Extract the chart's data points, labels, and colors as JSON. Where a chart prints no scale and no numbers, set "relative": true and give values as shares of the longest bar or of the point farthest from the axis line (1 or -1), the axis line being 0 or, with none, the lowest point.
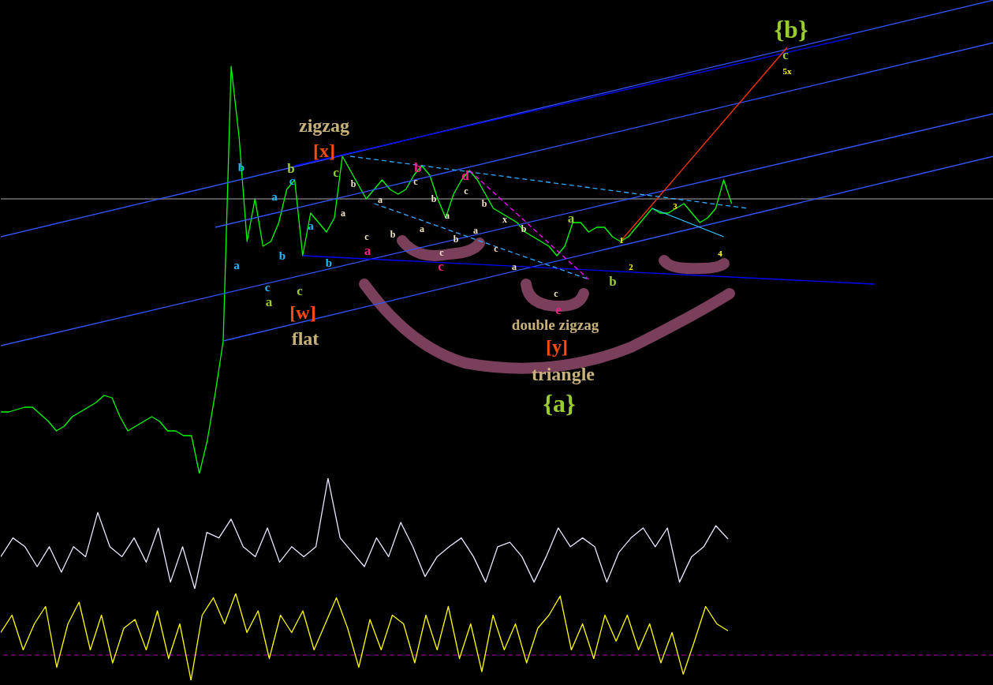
{
  "chart_data": [
    {
      "type": "line",
      "relative": true,
      "categories": [
        null,
        null,
        null,
        null,
        null,
        null,
        null,
        null,
        null,
        null,
        null,
        null,
        null,
        null,
        null,
        null,
        null,
        null,
        null,
        null,
        null,
        null,
        null,
        null,
        null,
        null,
        null,
        null,
        null,
        null,
        null,
        null,
        null,
        null,
        null,
        null,
        null,
        null,
        null,
        null,
        null,
        null,
        null,
        null,
        null,
        null,
        null,
        null,
        null,
        null,
        null,
        null,
        null,
        null,
        null,
        null,
        null,
        null,
        null,
        null,
        null,
        null,
        null,
        null,
        null,
        null,
        null,
        null,
        null,
        null,
        null,
        null,
        null,
        null,
        null,
        null,
        null,
        null,
        null,
        null,
        null,
        null,
        null,
        null,
        null,
        null,
        null,
        null,
        null,
        null,
        null,
        null,
        null,
        null,
        null,
        null,
        null,
        null,
        null,
        null,
        null,
        null,
        null,
        null,
        null,
        null,
        null,
        null,
        null,
        null,
        null,
        null,
        null,
        null,
        null,
        null,
        null,
        null,
        null,
        null,
        null,
        null,
        null,
        null,
        null,
        null
      ],
      "series": [
        {
          "color": "#00ff00",
          "values": [
            0.13,
            0.13,
            0.135,
            0.14,
            0.14,
            0.125,
            0.11,
            0.09,
            0.1,
            0.12,
            0.13,
            0.14,
            0.15,
            0.165,
            0.16,
            0.12,
            0.09,
            0.1,
            0.11,
            0.12,
            0.11,
            0.09,
            0.09,
            0.08,
            0.08,
            0,
            0.07,
            0.17,
            0.28,
            0.86,
            0.71,
            0.49,
            0.58,
            0.48,
            0.49,
            0.53,
            0.6,
            0.62,
            0.46,
            0.55,
            0.53,
            0.51,
            0.54,
            0.67,
            0.64,
            0.61,
            0.58,
            0.6,
            0.62,
            0.6,
            0.59,
            0.6,
            0.63,
            0.65,
            0.63,
            0.58,
            0.54,
            0.59,
            0.62,
            0.64,
            0.62,
            0.59,
            0.56,
            0.55,
            0.54,
            0.53,
            0.51,
            0.5,
            0.49,
            0.48,
            0.46,
            0.48,
            0.53,
            0.53,
            0.51,
            0.52,
            0.52,
            0.5,
            0.49,
            0.5,
            0.52,
            0.54,
            0.56,
            0.55,
            0.55,
            0.56,
            0.57,
            0.55,
            0.53,
            0.54,
            0.56,
            0.62,
            0.57,
            null,
            null,
            null,
            null,
            null,
            null,
            null,
            null,
            null,
            null,
            null,
            null,
            null,
            null,
            null,
            null,
            null,
            null,
            null,
            null,
            null,
            null,
            null,
            null,
            null,
            null,
            null,
            null,
            null,
            null,
            null,
            null,
            null
          ]
        },
        {
          "color": "#3355ff",
          "values": [
            0.5,
            null,
            null,
            null,
            null,
            null,
            null,
            null,
            null,
            null,
            null,
            null,
            null,
            null,
            null,
            null,
            null,
            null,
            null,
            null,
            null,
            null,
            null,
            null,
            null,
            null,
            null,
            null,
            null,
            null,
            null,
            null,
            null,
            null,
            null,
            null,
            null,
            null,
            null,
            null,
            null,
            null,
            null,
            null,
            null,
            null,
            null,
            null,
            null,
            null,
            null,
            null,
            null,
            null,
            null,
            null,
            null,
            null,
            null,
            null,
            null,
            null,
            null,
            null,
            null,
            null,
            null,
            null,
            null,
            null,
            null,
            null,
            null,
            null,
            null,
            null,
            null,
            null,
            null,
            null,
            null,
            null,
            null,
            null,
            null,
            null,
            null,
            null,
            null,
            null,
            null,
            null,
            null,
            null,
            null,
            null,
            null,
            null,
            null,
            null,
            null,
            null,
            null,
            null,
            null,
            null,
            null,
            null,
            null,
            null,
            null,
            null,
            null,
            null,
            null,
            null,
            null,
            null,
            null,
            null,
            null,
            null,
            null,
            null,
            null,
            1.0
          ]
        },
        {
          "color": "#0000ff",
          "values": [
            null,
            null,
            null,
            null,
            null,
            null,
            null,
            null,
            null,
            null,
            null,
            null,
            null,
            null,
            null,
            null,
            null,
            null,
            null,
            null,
            null,
            null,
            null,
            null,
            null,
            null,
            null,
            null,
            null,
            null,
            null,
            null,
            null,
            null,
            null,
            null,
            null,
            0.65,
            null,
            null,
            null,
            null,
            null,
            null,
            null,
            null,
            null,
            null,
            null,
            null,
            null,
            null,
            null,
            null,
            null,
            null,
            null,
            null,
            null,
            null,
            null,
            null,
            null,
            null,
            null,
            null,
            null,
            null,
            null,
            null,
            null,
            null,
            null,
            null,
            null,
            null,
            null,
            null,
            null,
            null,
            null,
            null,
            null,
            null,
            null,
            null,
            null,
            null,
            null,
            null,
            null,
            null,
            null,
            null,
            null,
            null,
            null,
            null,
            null,
            null,
            null,
            null,
            null,
            null,
            null,
            null,
            null,
            0.92,
            null,
            null,
            null,
            null,
            null,
            null,
            null,
            null,
            null,
            null,
            null,
            null,
            null,
            null,
            null,
            null,
            null,
            null
          ]
        },
        {
          "color": "#3355ff",
          "values": [
            null,
            null,
            null,
            null,
            null,
            null,
            null,
            null,
            null,
            null,
            null,
            null,
            null,
            null,
            null,
            null,
            null,
            null,
            null,
            null,
            null,
            null,
            null,
            null,
            null,
            null,
            null,
            0.52,
            null,
            null,
            null,
            null,
            null,
            null,
            null,
            null,
            null,
            null,
            null,
            null,
            null,
            null,
            null,
            null,
            null,
            null,
            null,
            null,
            null,
            null,
            null,
            null,
            null,
            null,
            null,
            null,
            null,
            null,
            null,
            null,
            null,
            null,
            null,
            null,
            null,
            null,
            null,
            null,
            null,
            null,
            null,
            null,
            null,
            null,
            null,
            null,
            null,
            null,
            null,
            null,
            null,
            null,
            null,
            null,
            null,
            null,
            null,
            null,
            null,
            null,
            null,
            null,
            null,
            null,
            null,
            null,
            null,
            null,
            null,
            null,
            null,
            null,
            null,
            null,
            null,
            null,
            null,
            null,
            null,
            null,
            null,
            null,
            null,
            null,
            null,
            null,
            null,
            null,
            null,
            null,
            null,
            null,
            null,
            null,
            null,
            0.91
          ]
        },
        {
          "color": "#3355ff",
          "values": [
            0.27,
            null,
            null,
            null,
            null,
            null,
            null,
            null,
            null,
            null,
            null,
            null,
            null,
            null,
            null,
            null,
            null,
            null,
            null,
            null,
            null,
            null,
            null,
            null,
            null,
            null,
            null,
            null,
            null,
            null,
            null,
            null,
            null,
            null,
            null,
            null,
            null,
            null,
            null,
            null,
            null,
            null,
            null,
            null,
            null,
            null,
            null,
            null,
            null,
            null,
            null,
            null,
            null,
            null,
            null,
            null,
            null,
            null,
            null,
            null,
            null,
            null,
            null,
            null,
            null,
            null,
            null,
            null,
            null,
            null,
            null,
            null,
            null,
            null,
            null,
            null,
            null,
            null,
            null,
            null,
            null,
            null,
            null,
            null,
            null,
            null,
            null,
            null,
            null,
            null,
            null,
            null,
            null,
            null,
            null,
            null,
            null,
            null,
            null,
            null,
            null,
            null,
            null,
            null,
            null,
            null,
            null,
            null,
            null,
            null,
            null,
            null,
            null,
            null,
            null,
            null,
            null,
            null,
            null,
            null,
            null,
            null,
            null,
            null,
            null,
            0.76
          ]
        },
        {
          "color": "#3355ff",
          "values": [
            null,
            null,
            null,
            null,
            null,
            null,
            null,
            null,
            null,
            null,
            null,
            null,
            null,
            null,
            null,
            null,
            null,
            null,
            null,
            null,
            null,
            null,
            null,
            null,
            null,
            null,
            null,
            null,
            0.28,
            null,
            null,
            null,
            null,
            null,
            null,
            null,
            null,
            null,
            null,
            null,
            null,
            null,
            null,
            null,
            null,
            null,
            null,
            null,
            null,
            null,
            null,
            null,
            null,
            null,
            null,
            null,
            null,
            null,
            null,
            null,
            null,
            null,
            null,
            null,
            null,
            null,
            null,
            null,
            null,
            null,
            null,
            null,
            null,
            null,
            null,
            null,
            null,
            null,
            null,
            null,
            null,
            null,
            null,
            null,
            null,
            null,
            null,
            null,
            null,
            null,
            null,
            null,
            null,
            null,
            null,
            null,
            null,
            null,
            null,
            null,
            null,
            null,
            null,
            null,
            null,
            null,
            null,
            null,
            null,
            null,
            null,
            null,
            null,
            null,
            null,
            null,
            null,
            null,
            null,
            null,
            null,
            null,
            null,
            null,
            null,
            0.67
          ]
        },
        {
          "color": "#0000ff",
          "values": [
            null,
            null,
            null,
            null,
            null,
            null,
            null,
            null,
            null,
            null,
            null,
            null,
            null,
            null,
            null,
            null,
            null,
            null,
            null,
            null,
            null,
            null,
            null,
            null,
            null,
            null,
            null,
            null,
            null,
            null,
            null,
            null,
            null,
            null,
            null,
            null,
            null,
            null,
            0.46,
            null,
            null,
            null,
            null,
            null,
            null,
            null,
            null,
            null,
            null,
            null,
            null,
            null,
            null,
            null,
            null,
            null,
            null,
            null,
            null,
            null,
            null,
            null,
            null,
            null,
            null,
            null,
            null,
            null,
            null,
            null,
            null,
            null,
            null,
            null,
            null,
            null,
            null,
            null,
            null,
            null,
            null,
            null,
            null,
            null,
            null,
            null,
            null,
            null,
            null,
            null,
            null,
            null,
            null,
            null,
            null,
            null,
            null,
            null,
            null,
            null,
            null,
            null,
            null,
            null,
            null,
            null,
            null,
            null,
            null,
            null,
            0.4,
            null,
            null,
            null,
            null,
            null,
            null,
            null,
            null,
            null,
            null,
            null,
            null,
            null,
            null,
            null
          ]
        },
        {
          "color": "#ff3300",
          "values": [
            null,
            null,
            null,
            null,
            null,
            null,
            null,
            null,
            null,
            null,
            null,
            null,
            null,
            null,
            null,
            null,
            null,
            null,
            null,
            null,
            null,
            null,
            null,
            null,
            null,
            null,
            null,
            null,
            null,
            null,
            null,
            null,
            null,
            null,
            null,
            null,
            null,
            null,
            null,
            null,
            null,
            null,
            null,
            null,
            null,
            null,
            null,
            null,
            null,
            null,
            null,
            null,
            null,
            null,
            null,
            null,
            null,
            null,
            null,
            null,
            null,
            null,
            null,
            null,
            null,
            null,
            null,
            null,
            null,
            null,
            null,
            null,
            null,
            null,
            null,
            null,
            null,
            null,
            0.49,
            null,
            null,
            null,
            null,
            null,
            null,
            null,
            null,
            null,
            null,
            null,
            null,
            null,
            null,
            null,
            null,
            null,
            null,
            null,
            null,
            0.9,
            null,
            null,
            null,
            null,
            null,
            null,
            null,
            null,
            null,
            null,
            null,
            null,
            null,
            null,
            null,
            null,
            null,
            null,
            null,
            null,
            null,
            null,
            null,
            null,
            null,
            null
          ]
        },
        {
          "color": "#33aaff",
          "line_style": "dashed",
          "values": [
            null,
            null,
            null,
            null,
            null,
            null,
            null,
            null,
            null,
            null,
            null,
            null,
            null,
            null,
            null,
            null,
            null,
            null,
            null,
            null,
            null,
            null,
            null,
            null,
            null,
            null,
            null,
            null,
            null,
            null,
            null,
            null,
            null,
            null,
            null,
            null,
            null,
            null,
            null,
            null,
            null,
            null,
            null,
            null,
            0.67,
            null,
            null,
            null,
            null,
            null,
            null,
            null,
            null,
            null,
            null,
            null,
            null,
            null,
            null,
            null,
            null,
            null,
            null,
            null,
            null,
            null,
            null,
            null,
            null,
            null,
            null,
            null,
            null,
            null,
            null,
            null,
            null,
            null,
            null,
            null,
            null,
            null,
            null,
            null,
            null,
            null,
            null,
            null,
            null,
            null,
            null,
            null,
            null,
            null,
            0.56,
            null,
            null,
            null,
            null,
            null,
            null,
            null,
            null,
            null,
            null,
            null,
            null,
            null,
            null,
            null,
            null,
            null,
            null,
            null,
            null,
            null,
            null,
            null,
            null,
            null,
            null,
            null,
            null,
            null,
            null,
            null
          ]
        },
        {
          "color": "#33aaff",
          "line_style": "dashed",
          "values": [
            null,
            null,
            null,
            null,
            null,
            null,
            null,
            null,
            null,
            null,
            null,
            null,
            null,
            null,
            null,
            null,
            null,
            null,
            null,
            null,
            null,
            null,
            null,
            null,
            null,
            null,
            null,
            null,
            null,
            null,
            null,
            null,
            null,
            null,
            null,
            null,
            null,
            null,
            null,
            null,
            null,
            null,
            null,
            null,
            null,
            null,
            null,
            0.57,
            null,
            null,
            null,
            null,
            null,
            null,
            null,
            null,
            null,
            null,
            null,
            null,
            null,
            null,
            null,
            null,
            null,
            null,
            null,
            null,
            null,
            null,
            null,
            null,
            null,
            null,
            0.41,
            null,
            null,
            null,
            null,
            null,
            null,
            null,
            null,
            null,
            null,
            null,
            null,
            null,
            null,
            null,
            null,
            null,
            null,
            null,
            null,
            null,
            null,
            null,
            null,
            null,
            null,
            null,
            null,
            null,
            null,
            null,
            null,
            null,
            null,
            null,
            null,
            null,
            null,
            null,
            null,
            null,
            null,
            null,
            null,
            null,
            null,
            null,
            null,
            null,
            null,
            null
          ]
        },
        {
          "color": "#ff00ff",
          "line_style": "dashed",
          "values": [
            null,
            null,
            null,
            null,
            null,
            null,
            null,
            null,
            null,
            null,
            null,
            null,
            null,
            null,
            null,
            null,
            null,
            null,
            null,
            null,
            null,
            null,
            null,
            null,
            null,
            null,
            null,
            null,
            null,
            null,
            null,
            null,
            null,
            null,
            null,
            null,
            null,
            null,
            null,
            null,
            null,
            null,
            null,
            null,
            null,
            null,
            null,
            null,
            null,
            null,
            null,
            null,
            null,
            null,
            null,
            null,
            null,
            null,
            null,
            0.64,
            null,
            null,
            null,
            null,
            null,
            null,
            null,
            null,
            null,
            null,
            null,
            null,
            null,
            null,
            0.41,
            null,
            null,
            null,
            null,
            null,
            null,
            null,
            null,
            null,
            null,
            null,
            null,
            null,
            null,
            null,
            null,
            null,
            null,
            null,
            null,
            null,
            null,
            null,
            null,
            null,
            null,
            null,
            null,
            null,
            null,
            null,
            null,
            null,
            null,
            null,
            null,
            null,
            null,
            null,
            null,
            null,
            null,
            null,
            null,
            null,
            null,
            null,
            null,
            null,
            null,
            null
          ]
        },
        {
          "color": "#33ccff",
          "values": [
            null,
            null,
            null,
            null,
            null,
            null,
            null,
            null,
            null,
            null,
            null,
            null,
            null,
            null,
            null,
            null,
            null,
            null,
            null,
            null,
            null,
            null,
            null,
            null,
            null,
            null,
            null,
            null,
            null,
            null,
            null,
            null,
            null,
            null,
            null,
            null,
            null,
            null,
            null,
            null,
            null,
            null,
            null,
            null,
            null,
            null,
            null,
            null,
            null,
            null,
            null,
            null,
            null,
            null,
            null,
            null,
            null,
            null,
            null,
            null,
            null,
            null,
            null,
            null,
            null,
            null,
            null,
            null,
            null,
            null,
            null,
            null,
            null,
            null,
            null,
            null,
            null,
            null,
            null,
            null,
            null,
            null,
            0.56,
            null,
            null,
            null,
            null,
            null,
            null,
            null,
            null,
            0.5,
            null,
            null,
            null,
            null,
            null,
            null,
            null,
            null,
            null,
            null,
            null,
            null,
            null,
            null,
            null,
            null,
            null,
            null,
            null,
            null,
            null,
            null,
            null,
            null,
            null,
            null,
            null,
            null,
            null,
            null,
            null,
            null,
            null,
            null
          ]
        }
      ],
      "ref_lines": [
        {
          "axis": "y",
          "value": 0.58,
          "color": "#aaaaaa"
        }
      ],
      "annotations": [
        "zigzag",
        "[x]",
        "[w]",
        "flat",
        "double zigzag",
        "[y]",
        "triangle",
        "{a}",
        "{b}",
        "b",
        "a",
        "a",
        "c",
        "b",
        "c",
        "a",
        "b",
        "b",
        "c",
        "a",
        "c",
        "a",
        "b",
        "c",
        "a",
        "b",
        "c",
        "d",
        "e",
        "b",
        "a",
        "c",
        "a",
        "b",
        "c",
        "b",
        "a",
        "a",
        "b",
        "c",
        "c",
        "b",
        "a",
        "x",
        "b",
        "c",
        "a",
        "c",
        "1",
        "2",
        "3",
        "4",
        "5x"
      ]
    },
    {
      "type": "line",
      "relative": true,
      "categories": [
        null,
        null,
        null,
        null,
        null,
        null,
        null,
        null,
        null,
        null,
        null,
        null,
        null,
        null,
        null,
        null,
        null,
        null,
        null,
        null,
        null,
        null,
        null,
        null,
        null,
        null,
        null,
        null,
        null,
        null,
        null,
        null,
        null,
        null,
        null,
        null,
        null,
        null,
        null,
        null,
        null,
        null,
        null,
        null,
        null,
        null,
        null,
        null,
        null,
        null,
        null,
        null,
        null,
        null,
        null,
        null,
        null,
        null,
        null,
        null,
        null
      ],
      "series": [
        {
          "color": "#e8e8ff",
          "values": [
            0.29,
            0.46,
            0.38,
            0.2,
            0.38,
            0.15,
            0.38,
            0.29,
            0.69,
            0.38,
            0.29,
            0.46,
            0.24,
            0.55,
            0.06,
            0.38,
            0,
            0.51,
            0.46,
            0.63,
            0.38,
            0.29,
            0.55,
            0.24,
            0.38,
            0.29,
            0.38,
            1,
            0.46,
            0.33,
            0.2,
            0.46,
            0.29,
            0.6,
            0.38,
            0.11,
            0.29,
            0.38,
            0.46,
            0.29,
            0.06,
            0.38,
            0.42,
            0.29,
            0.06,
            0.29,
            0.55,
            0.38,
            0.46,
            0.38,
            0.06,
            0.33,
            0.46,
            0.55,
            0.38,
            0.55,
            0.06,
            0.29,
            0.38,
            0.57,
            0.45
          ]
        }
      ]
    },
    {
      "type": "line",
      "relative": true,
      "categories": [
        null,
        null,
        null,
        null,
        null,
        null,
        null,
        null,
        null,
        null,
        null,
        null,
        null,
        null,
        null,
        null,
        null,
        null,
        null,
        null,
        null,
        null,
        null,
        null,
        null,
        null,
        null,
        null,
        null,
        null,
        null,
        null,
        null,
        null,
        null,
        null,
        null,
        null,
        null,
        null,
        null,
        null,
        null,
        null,
        null,
        null,
        null,
        null,
        null,
        null,
        null,
        null,
        null,
        null,
        null,
        null,
        null,
        null,
        null,
        null,
        null,
        null,
        null,
        null,
        null,
        null
      ],
      "series": [
        {
          "color": "#ffff00",
          "values": [
            0.55,
            0.75,
            0.35,
            0.65,
            0.85,
            0.15,
            0.65,
            0.9,
            0.35,
            0.75,
            0.2,
            0.6,
            0.7,
            0.35,
            0.8,
            0.25,
            0.65,
            0,
            0.75,
            0.95,
            0.65,
            1,
            0.55,
            0.8,
            0.25,
            0.75,
            0.55,
            0.8,
            0.35,
            0.65,
            0.95,
            0.6,
            0.15,
            0.7,
            0.35,
            0.75,
            0.65,
            0.2,
            0.75,
            0.35,
            0.85,
            0.25,
            0.65,
            0.1,
            0.75,
            0.35,
            0.65,
            0.2,
            0.6,
            0.75,
            0.97,
            0.35,
            0.65,
            0.25,
            0.75,
            0.45,
            0.75,
            0.35,
            0.65,
            0.2,
            0.55,
            0.07,
            0.45,
            0.85,
            0.65,
            0.57
          ]
        }
      ],
      "ref_lines": [
        {
          "axis": "y",
          "value": 0.29,
          "color": "#aa00aa",
          "line_style": "dashed"
        }
      ]
    }
  ]
}
